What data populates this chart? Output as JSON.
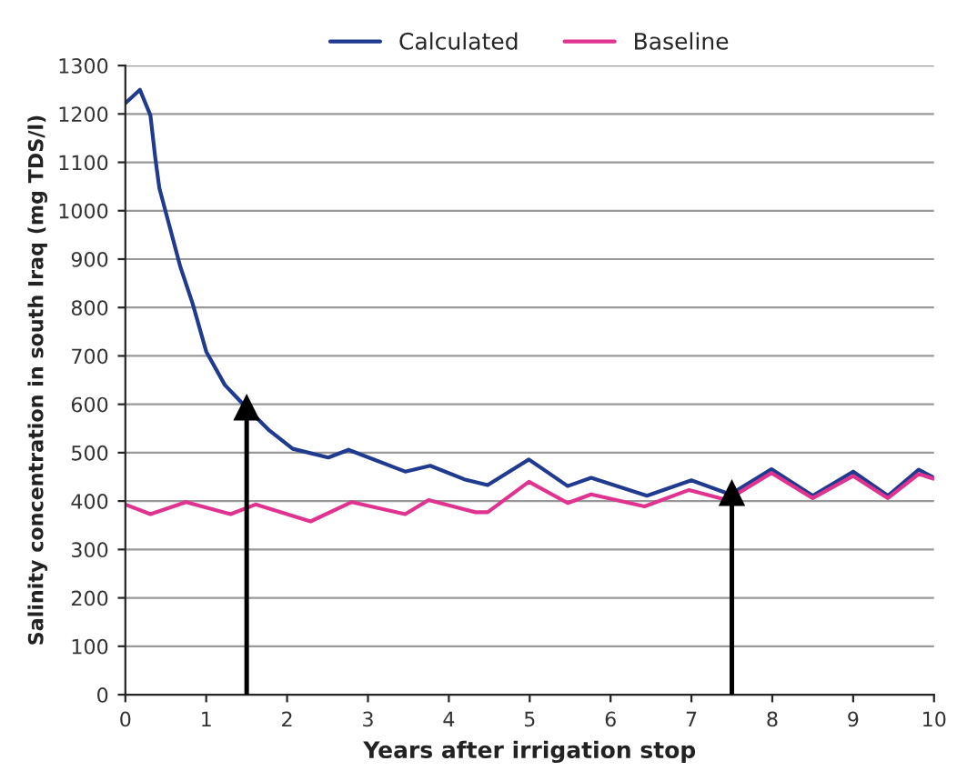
{
  "chart_data": {
    "type": "line",
    "xlabel": "Years after irrigation stop",
    "ylabel": "Salinity concentration in south Iraq (mg TDS/l)",
    "xlim": [
      0,
      10
    ],
    "xticks": [
      0,
      1,
      2,
      3,
      4,
      5,
      6,
      7,
      8,
      9,
      10
    ],
    "ylim": [
      0,
      1300
    ],
    "yticks": [
      0,
      100,
      200,
      300,
      400,
      500,
      600,
      700,
      800,
      900,
      1000,
      1100,
      1200,
      1300
    ],
    "grid": "y",
    "legend": "top",
    "marker": "none",
    "line_style": "solid",
    "series": [
      {
        "name": "Calculated",
        "color": "#1f3a8f",
        "x": [
          0,
          0.18,
          0.31,
          0.37,
          0.42,
          0.68,
          0.83,
          1.0,
          1.23,
          1.48,
          1.78,
          2.07,
          2.51,
          2.76,
          3.46,
          3.77,
          4.19,
          4.48,
          4.99,
          5.47,
          5.76,
          6.45,
          7.0,
          7.48,
          7.99,
          8.5,
          9.0,
          9.43,
          9.81,
          10
        ],
        "values": [
          1222,
          1250,
          1197,
          1109,
          1047,
          884,
          809,
          709,
          640,
          596,
          546,
          508,
          490,
          506,
          461,
          473,
          445,
          433,
          486,
          431,
          448,
          411,
          443,
          414,
          466,
          411,
          461,
          411,
          465,
          448
        ]
      },
      {
        "name": "Baseline",
        "color": "#e0338f",
        "x": [
          0,
          0.31,
          0.75,
          1.3,
          1.61,
          2.29,
          2.8,
          3.46,
          3.75,
          4.33,
          4.48,
          4.99,
          5.47,
          5.76,
          6.42,
          6.97,
          7.44,
          7.99,
          8.5,
          9.0,
          9.43,
          9.81,
          10
        ],
        "values": [
          393,
          373,
          398,
          373,
          393,
          358,
          398,
          373,
          402,
          377,
          377,
          440,
          396,
          414,
          389,
          423,
          402,
          458,
          406,
          452,
          406,
          456,
          446
        ]
      }
    ],
    "ref_lines": [
      {
        "axis": "x",
        "value": 1.5,
        "color": "#000000"
      },
      {
        "axis": "x",
        "value": 7.5,
        "color": "#000000"
      }
    ]
  }
}
